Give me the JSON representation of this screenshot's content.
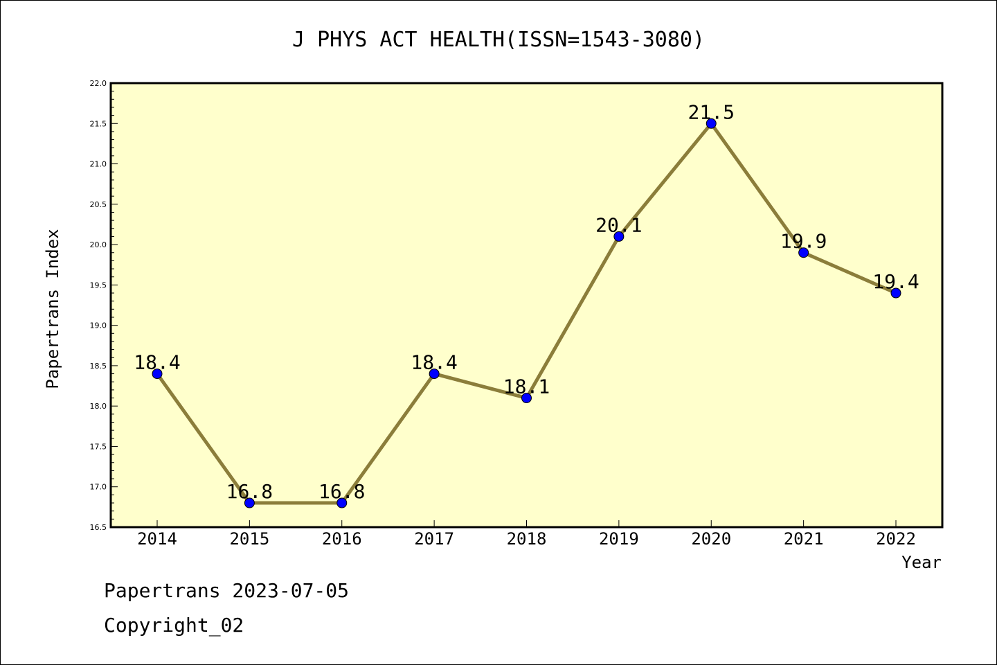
{
  "chart_data": {
    "type": "line",
    "title": "J PHYS ACT HEALTH(ISSN=1543-3080)",
    "xlabel": "Year",
    "ylabel": "Papertrans Index",
    "categories": [
      "2014",
      "2015",
      "2016",
      "2017",
      "2018",
      "2019",
      "2020",
      "2021",
      "2022"
    ],
    "values": [
      18.4,
      16.8,
      16.8,
      18.4,
      18.1,
      20.1,
      21.5,
      19.9,
      19.4
    ],
    "data_labels": [
      "18.4",
      "16.8",
      "16.8",
      "18.4",
      "18.1",
      "20.1",
      "21.5",
      "19.9",
      "19.4"
    ],
    "ylim": [
      16.5,
      22.0
    ],
    "yticks": [
      "16.5",
      "17.0",
      "17.5",
      "18.0",
      "18.5",
      "19.0",
      "19.5",
      "20.0",
      "20.5",
      "21.0",
      "21.5",
      "22.0"
    ],
    "grid": false,
    "legend": "none",
    "colors": {
      "plot_background": "#ffffcc",
      "line": "#8b7d3a",
      "marker": "#0000ff"
    }
  },
  "footer": {
    "line1": "Papertrans 2023-07-05",
    "line2": "Copyright_02"
  }
}
